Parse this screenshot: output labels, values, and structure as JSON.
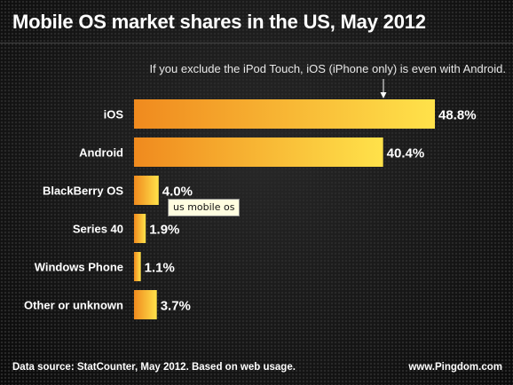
{
  "title": "Mobile OS market shares in the US, May 2012",
  "annotation": "If you exclude the iPod Touch, iOS (iPhone only) is even with Android.",
  "tooltip": "us mobile os",
  "footer": {
    "source": "Data source: StatCounter, May 2012. Based on web usage.",
    "site": "www.Pingdom.com"
  },
  "colors": {
    "bar_start": "#f08a1e",
    "bar_end": "#ffe24a"
  },
  "chart_data": {
    "type": "bar",
    "orientation": "horizontal",
    "title": "Mobile OS market shares in the US, May 2012",
    "categories": [
      "iOS",
      "Android",
      "BlackBerry OS",
      "Series 40",
      "Windows Phone",
      "Other or unknown"
    ],
    "values": [
      48.8,
      40.4,
      4.0,
      1.9,
      1.1,
      3.7
    ],
    "value_labels": [
      "48.8%",
      "40.4%",
      "4.0%",
      "1.9%",
      "1.1%",
      "3.7%"
    ],
    "xlim": [
      0,
      48.8
    ],
    "grid": false,
    "legend": "none"
  }
}
